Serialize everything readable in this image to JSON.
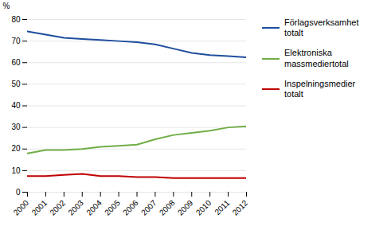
{
  "chart_data": {
    "type": "line",
    "x": [
      2000,
      2001,
      2002,
      2003,
      2004,
      2005,
      2006,
      2007,
      2008,
      2009,
      2010,
      2011,
      2012
    ],
    "xlim": [
      2000,
      2012
    ],
    "xticks": [
      2000,
      2001,
      2002,
      2003,
      2004,
      2005,
      2006,
      2007,
      2008,
      2009,
      2010,
      2011,
      2012
    ],
    "ylim": [
      0,
      80
    ],
    "yticks": [
      0,
      10,
      20,
      30,
      40,
      50,
      60,
      70,
      80
    ],
    "ylabel": "%",
    "grid": true,
    "legend": "right",
    "series": [
      {
        "name": "Förlagsverksamhet\ntotalt",
        "color": "#1f4e9e",
        "values": [
          74.5,
          73.0,
          71.5,
          71.0,
          70.5,
          70.0,
          69.5,
          68.5,
          66.5,
          64.5,
          63.5,
          63.0,
          62.5
        ]
      },
      {
        "name": "Elektroniska\nmassmediertotal",
        "color": "#70ad47",
        "values": [
          18.0,
          19.5,
          19.5,
          20.0,
          21.0,
          21.5,
          22.0,
          24.5,
          26.5,
          27.5,
          28.5,
          30.0,
          30.5
        ]
      },
      {
        "name": "Inspelningsmedier\ntotalt",
        "color": "#c00000",
        "values": [
          7.5,
          7.5,
          8.0,
          8.5,
          7.5,
          7.5,
          7.0,
          7.0,
          6.5,
          6.5,
          6.5,
          6.5,
          6.5
        ]
      }
    ]
  }
}
